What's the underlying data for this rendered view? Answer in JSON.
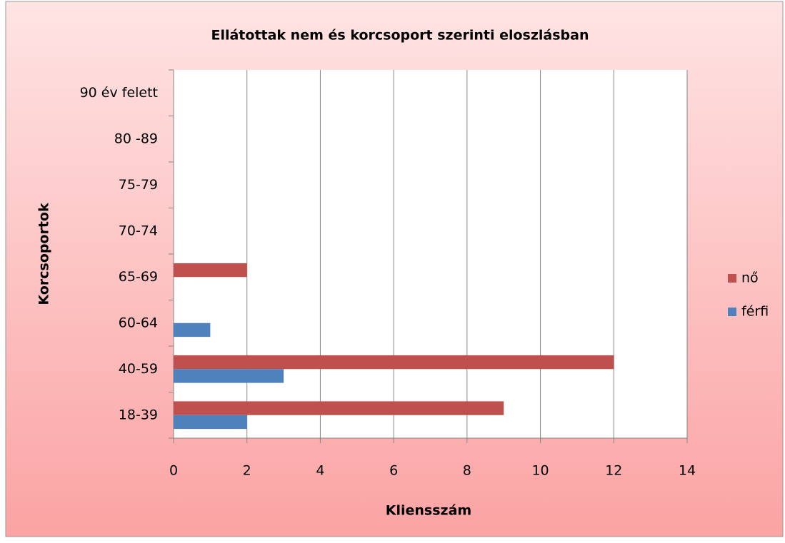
{
  "chart_data": {
    "type": "bar",
    "orientation": "horizontal",
    "title": "Ellátottak nem és korcsoport szerinti eloszlásban",
    "x_label": "Kliensszám",
    "y_label": "Korcsoportok",
    "categories": [
      "18-39",
      "40-59",
      "60-64",
      "65-69",
      "70-74",
      "75-79",
      "80 -89",
      "90 év felett"
    ],
    "series": [
      {
        "name": "nő",
        "color": "#c0504d",
        "values": [
          9,
          12,
          0,
          2,
          0,
          0,
          0,
          0
        ]
      },
      {
        "name": "férfi",
        "color": "#4f81bd",
        "values": [
          2,
          3,
          1,
          0,
          0,
          0,
          0,
          0
        ]
      }
    ],
    "xlim": [
      0,
      14
    ],
    "xticks": [
      0,
      2,
      4,
      6,
      8,
      10,
      12,
      14
    ],
    "grid": true,
    "legend": "right"
  }
}
